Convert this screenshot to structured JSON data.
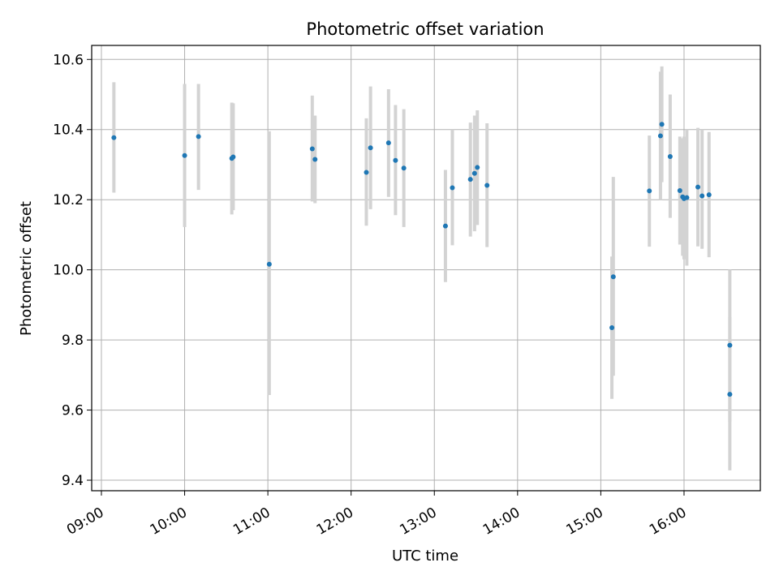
{
  "chart_data": {
    "type": "scatter",
    "title": "Photometric offset variation",
    "xlabel": "UTC time",
    "ylabel": "Photometric offset",
    "xlim": [
      "08:53",
      "16:55"
    ],
    "ylim": [
      9.37,
      10.64
    ],
    "x_ticks": [
      "09:00",
      "10:00",
      "11:00",
      "12:00",
      "13:00",
      "14:00",
      "15:00",
      "16:00"
    ],
    "y_ticks": [
      "9.4",
      "9.6",
      "9.8",
      "10.0",
      "10.2",
      "10.4",
      "10.6"
    ],
    "grid": true,
    "marker_color": "#1f77b4",
    "errorbar_color": "#d3d3d3",
    "points": [
      {
        "x": "09:09",
        "y": 10.377,
        "ylo": 10.22,
        "yhi": 10.535
      },
      {
        "x": "10:00",
        "y": 10.326,
        "ylo": 10.122,
        "yhi": 10.53
      },
      {
        "x": "10:10",
        "y": 10.38,
        "ylo": 10.228,
        "yhi": 10.53
      },
      {
        "x": "10:34",
        "y": 10.318,
        "ylo": 10.158,
        "yhi": 10.477
      },
      {
        "x": "10:35",
        "y": 10.322,
        "ylo": 10.17,
        "yhi": 10.475
      },
      {
        "x": "11:01",
        "y": 10.016,
        "ylo": 9.643,
        "yhi": 10.395
      },
      {
        "x": "11:32",
        "y": 10.345,
        "ylo": 10.195,
        "yhi": 10.497
      },
      {
        "x": "11:34",
        "y": 10.315,
        "ylo": 10.19,
        "yhi": 10.44
      },
      {
        "x": "12:11",
        "y": 10.278,
        "ylo": 10.126,
        "yhi": 10.432
      },
      {
        "x": "12:14",
        "y": 10.348,
        "ylo": 10.173,
        "yhi": 10.523
      },
      {
        "x": "12:27",
        "y": 10.362,
        "ylo": 10.208,
        "yhi": 10.515
      },
      {
        "x": "12:32",
        "y": 10.312,
        "ylo": 10.156,
        "yhi": 10.47
      },
      {
        "x": "12:38",
        "y": 10.29,
        "ylo": 10.122,
        "yhi": 10.458
      },
      {
        "x": "13:08",
        "y": 10.125,
        "ylo": 9.965,
        "yhi": 10.285
      },
      {
        "x": "13:13",
        "y": 10.234,
        "ylo": 10.07,
        "yhi": 10.4
      },
      {
        "x": "13:26",
        "y": 10.258,
        "ylo": 10.095,
        "yhi": 10.42
      },
      {
        "x": "13:29",
        "y": 10.275,
        "ylo": 10.11,
        "yhi": 10.44
      },
      {
        "x": "13:31",
        "y": 10.292,
        "ylo": 10.128,
        "yhi": 10.455
      },
      {
        "x": "13:38",
        "y": 10.241,
        "ylo": 10.065,
        "yhi": 10.418
      },
      {
        "x": "15:08",
        "y": 9.835,
        "ylo": 9.632,
        "yhi": 10.038
      },
      {
        "x": "15:09",
        "y": 9.98,
        "ylo": 9.698,
        "yhi": 10.265
      },
      {
        "x": "15:35",
        "y": 10.225,
        "ylo": 10.066,
        "yhi": 10.383
      },
      {
        "x": "15:43",
        "y": 10.382,
        "ylo": 10.2,
        "yhi": 10.565
      },
      {
        "x": "15:44",
        "y": 10.415,
        "ylo": 10.25,
        "yhi": 10.58
      },
      {
        "x": "15:50",
        "y": 10.323,
        "ylo": 10.148,
        "yhi": 10.5
      },
      {
        "x": "15:57",
        "y": 10.226,
        "ylo": 10.072,
        "yhi": 10.38
      },
      {
        "x": "15:59",
        "y": 10.208,
        "ylo": 10.04,
        "yhi": 10.375
      },
      {
        "x": "16:00",
        "y": 10.203,
        "ylo": 10.03,
        "yhi": 10.38
      },
      {
        "x": "16:02",
        "y": 10.206,
        "ylo": 10.012,
        "yhi": 10.4
      },
      {
        "x": "16:10",
        "y": 10.236,
        "ylo": 10.067,
        "yhi": 10.405
      },
      {
        "x": "16:13",
        "y": 10.211,
        "ylo": 10.06,
        "yhi": 10.4
      },
      {
        "x": "16:18",
        "y": 10.214,
        "ylo": 10.036,
        "yhi": 10.393
      },
      {
        "x": "16:33",
        "y": 9.785,
        "ylo": 9.567,
        "yhi": 10.0
      },
      {
        "x": "16:33",
        "y": 9.645,
        "ylo": 9.428,
        "yhi": 9.865
      }
    ]
  }
}
